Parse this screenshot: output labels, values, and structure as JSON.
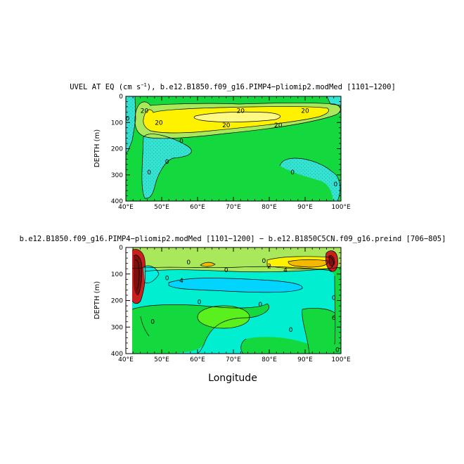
{
  "chart_data": [
    {
      "type": "contour",
      "title": "UVEL AT EQ (cm s⁻¹), b.e12.B1850.f09_g16.PIMP4−pliomip2.modMed [1101−1200]",
      "ylabel": "DEPTH (m)",
      "xlabel": "",
      "xlim": [
        40,
        100
      ],
      "ylim": [
        400,
        0
      ],
      "x_ticks": [
        "40°E",
        "50°E",
        "60°E",
        "70°E",
        "80°E",
        "90°E",
        "100°E"
      ],
      "y_ticks": [
        "0",
        "100",
        "200",
        "300",
        "400"
      ],
      "contour_labels": [
        {
          "text": "20",
          "lon": 45.2,
          "depth": 55
        },
        {
          "text": "20",
          "lon": 49.2,
          "depth": 100
        },
        {
          "text": "20",
          "lon": 72.0,
          "depth": 55
        },
        {
          "text": "20",
          "lon": 90.0,
          "depth": 55
        },
        {
          "text": "20",
          "lon": 68.0,
          "depth": 110
        },
        {
          "text": "20",
          "lon": 82.5,
          "depth": 110
        },
        {
          "text": "0",
          "lon": 55.5,
          "depth": 170
        },
        {
          "text": "0",
          "lon": 51.5,
          "depth": 250
        },
        {
          "text": "0",
          "lon": 46.5,
          "depth": 290
        },
        {
          "text": "0",
          "lon": 86.5,
          "depth": 290
        },
        {
          "text": "0",
          "lon": 98.5,
          "depth": 335
        },
        {
          "text": "0",
          "lon": 40.5,
          "depth": 85
        }
      ]
    },
    {
      "type": "contour",
      "title": "b.e12.B1850.f09_g16.PIMP4−pliomip2.modMed [1101−1200] − b.e12.B1850C5CN.f09_g16.preind [706−805]",
      "ylabel": "DEPTH (m)",
      "xlabel": "Longitude",
      "xlim": [
        40,
        100
      ],
      "ylim": [
        400,
        0
      ],
      "x_ticks": [
        "40°E",
        "50°E",
        "60°E",
        "70°E",
        "80°E",
        "90°E",
        "100°E"
      ],
      "y_ticks": [
        "0",
        "100",
        "200",
        "300",
        "400"
      ],
      "contour_labels": [
        {
          "text": "0",
          "lon": 57.5,
          "depth": 55
        },
        {
          "text": "0",
          "lon": 68.0,
          "depth": 85
        },
        {
          "text": "0",
          "lon": 51.5,
          "depth": 115
        },
        {
          "text": "4",
          "lon": 55.5,
          "depth": 125
        },
        {
          "text": "0",
          "lon": 60.5,
          "depth": 205
        },
        {
          "text": "0",
          "lon": 77.5,
          "depth": 215
        },
        {
          "text": "0",
          "lon": 47.5,
          "depth": 280
        },
        {
          "text": "0",
          "lon": 86.0,
          "depth": 310
        },
        {
          "text": "0",
          "lon": 98.0,
          "depth": 190
        },
        {
          "text": "6",
          "lon": 98.0,
          "depth": 265
        },
        {
          "text": "0",
          "lon": 99.0,
          "depth": 385
        },
        {
          "text": "0",
          "lon": 78.5,
          "depth": 50
        },
        {
          "text": "4",
          "lon": 84.5,
          "depth": 85
        },
        {
          "text": "2",
          "lon": 80.0,
          "depth": 70
        }
      ]
    }
  ]
}
